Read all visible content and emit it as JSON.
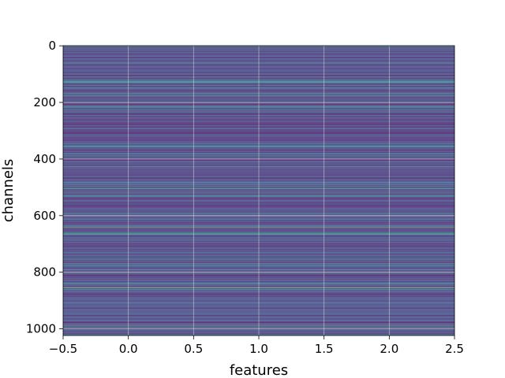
{
  "chart_data": {
    "type": "heatmap",
    "title": "",
    "xlabel": "features",
    "ylabel": "channels",
    "xlim": [
      -0.5,
      2.5
    ],
    "ylim": [
      1023.5,
      -0.5
    ],
    "x_ticks": [
      -0.5,
      0.0,
      0.5,
      1.0,
      1.5,
      2.0,
      2.5
    ],
    "x_tick_labels": [
      "−0.5",
      "0.0",
      "0.5",
      "1.0",
      "1.5",
      "2.0",
      "2.5"
    ],
    "y_ticks": [
      0,
      200,
      400,
      600,
      800,
      1000
    ],
    "y_tick_labels": [
      "0",
      "200",
      "400",
      "600",
      "800",
      "1000"
    ],
    "grid": true,
    "colormap": "viridis",
    "n_rows": 1024,
    "n_cols": 3,
    "rows_uniform_across_features": true,
    "highlighted_rows": [
      {
        "channel": 0,
        "value": 0.95
      },
      {
        "channel": 100,
        "value": 0.55
      },
      {
        "channel": 120,
        "value": 0.5
      },
      {
        "channel": 130,
        "value": 0.7
      },
      {
        "channel": 235,
        "value": 0.6
      },
      {
        "channel": 380,
        "value": 0.55
      },
      {
        "channel": 410,
        "value": 0.5
      },
      {
        "channel": 490,
        "value": 0.55
      },
      {
        "channel": 505,
        "value": 0.75
      },
      {
        "channel": 515,
        "value": 0.6
      },
      {
        "channel": 530,
        "value": 0.6
      },
      {
        "channel": 640,
        "value": 0.9
      },
      {
        "channel": 660,
        "value": 0.55
      },
      {
        "channel": 800,
        "value": 0.85
      },
      {
        "channel": 855,
        "value": 0.95
      },
      {
        "channel": 990,
        "value": 0.8
      },
      {
        "channel": 1005,
        "value": 0.55
      }
    ]
  },
  "colors": {
    "viridis_stops": [
      "#440154",
      "#482878",
      "#3e4989",
      "#31688e",
      "#26828e",
      "#1f9e89",
      "#35b779",
      "#6ece58",
      "#b5de2b",
      "#fde725"
    ],
    "grid": "#d0d0d0"
  }
}
